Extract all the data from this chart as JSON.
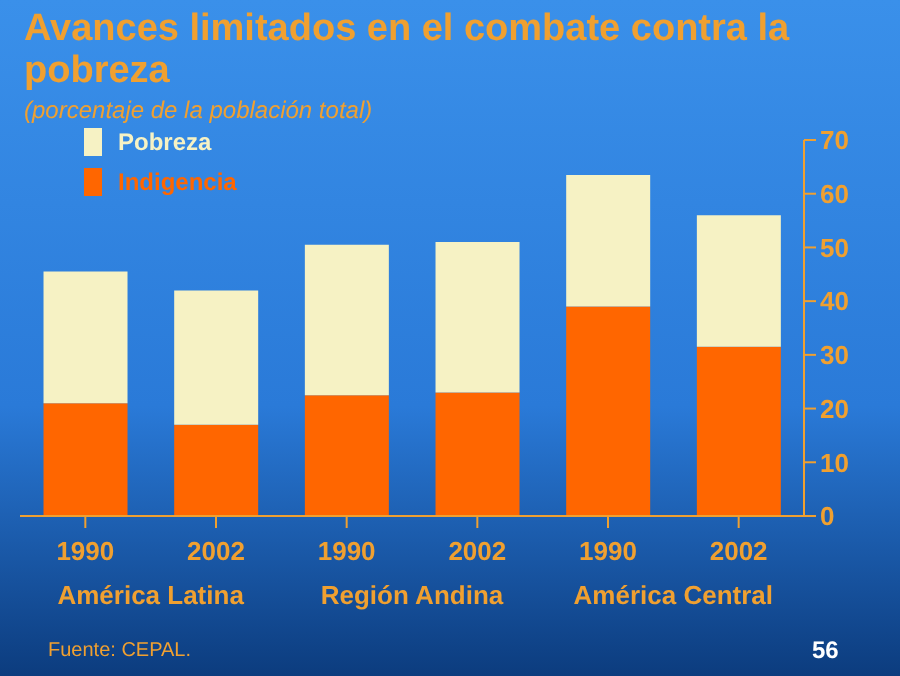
{
  "chart_data": {
    "type": "bar",
    "title": "Avances limitados en el combate contra la pobreza",
    "subtitle": "(porcentaje de la población total)",
    "categories": [
      "1990",
      "2002",
      "1990",
      "2002",
      "1990",
      "2002"
    ],
    "stacked": true,
    "series": [
      {
        "name": "Indigencia",
        "color": "#ff6600",
        "values": [
          21,
          17,
          22.5,
          23,
          39,
          31.5
        ]
      },
      {
        "name": "Pobreza",
        "color": "#f6f2c4",
        "values": [
          24.5,
          25,
          28,
          28,
          24.5,
          24.5
        ]
      }
    ],
    "ylim": [
      0,
      70
    ],
    "yticks": [
      0,
      10,
      20,
      30,
      40,
      50,
      60,
      70
    ],
    "legend": "top left",
    "annotations": [
      "América Latina",
      "Región Andina",
      "América Central",
      "Fuente: CEPAL.",
      "56"
    ]
  }
}
